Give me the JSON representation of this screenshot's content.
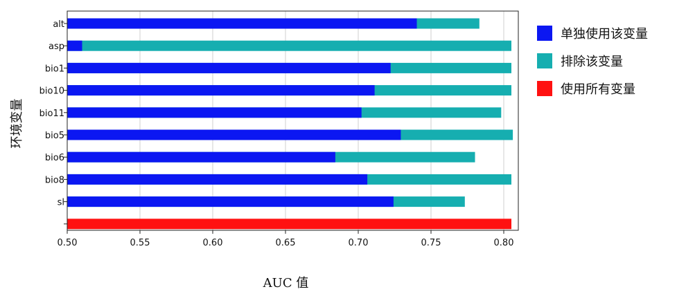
{
  "chart_data": {
    "type": "bar",
    "orientation": "horizontal",
    "stacked": false,
    "xlabel": "AUC 值",
    "ylabel": "环境变量",
    "xlim": [
      0.5,
      0.81
    ],
    "xticks": [
      "0.50",
      "0.55",
      "0.60",
      "0.65",
      "0.70",
      "0.75",
      "0.80"
    ],
    "grid": "vertical",
    "legend_position": "right",
    "categories": [
      "alt",
      "asp",
      "bio1",
      "bio10",
      "bio11",
      "bio5",
      "bio6",
      "bio8",
      "sl",
      ""
    ],
    "series": [
      {
        "name": "单独使用该变量",
        "color": "#0b17f2",
        "values": [
          0.74,
          0.51,
          0.722,
          0.711,
          0.702,
          0.729,
          0.684,
          0.706,
          0.724,
          null
        ]
      },
      {
        "name": "排除该变量",
        "color": "#16aeb0",
        "values": [
          0.783,
          0.805,
          0.805,
          0.805,
          0.798,
          0.806,
          0.78,
          0.805,
          0.773,
          null
        ]
      },
      {
        "name": "使用所有变量",
        "color": "#ff1111",
        "values": [
          null,
          null,
          null,
          null,
          null,
          null,
          null,
          null,
          null,
          0.805
        ]
      }
    ]
  }
}
